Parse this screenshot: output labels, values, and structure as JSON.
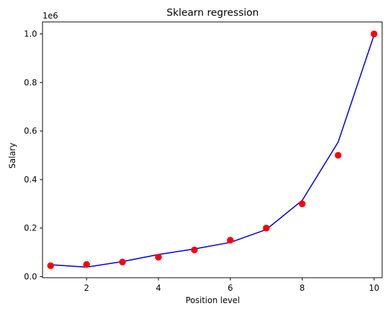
{
  "chart_data": {
    "type": "scatter",
    "title": "Sklearn regression",
    "xlabel": "Position level",
    "ylabel": "Salary",
    "y_offset_text": "1e6",
    "xlim": [
      0.775,
      10.225
    ],
    "ylim": [
      -0.0045,
      1.0495
    ],
    "x_ticks": [
      2,
      4,
      6,
      8,
      10
    ],
    "x_tick_labels": [
      "2",
      "4",
      "6",
      "8",
      "10"
    ],
    "y_ticks": [
      0.0,
      0.2,
      0.4,
      0.6,
      0.8,
      1.0
    ],
    "y_tick_labels": [
      "0.0",
      "0.2",
      "0.4",
      "0.6",
      "0.8",
      "1.0"
    ],
    "grid": false,
    "series": [
      {
        "kind": "scatter",
        "color": "#ff0000",
        "x": [
          1,
          2,
          3,
          4,
          5,
          6,
          7,
          8,
          9,
          10
        ],
        "y": [
          0.045,
          0.05,
          0.06,
          0.08,
          0.11,
          0.15,
          0.2,
          0.3,
          0.5,
          1.0
        ]
      },
      {
        "kind": "line",
        "color": "#0000ff",
        "x": [
          1,
          2,
          3,
          4,
          5,
          6,
          7,
          8,
          9,
          10
        ],
        "y": [
          0.049,
          0.039,
          0.062,
          0.091,
          0.114,
          0.141,
          0.194,
          0.314,
          0.554,
          0.995
        ]
      }
    ]
  }
}
